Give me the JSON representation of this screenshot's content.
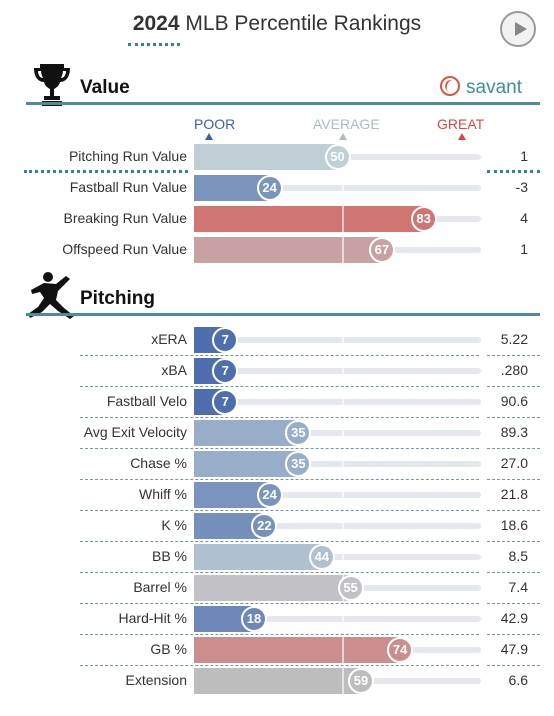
{
  "header": {
    "year": "2024",
    "title_rest": "MLB Percentile Rankings"
  },
  "play_icon": "play-icon",
  "brand": {
    "name": "savant",
    "icon": "baseball-icon",
    "color": "#3e8f93"
  },
  "scale": {
    "poor": "POOR",
    "average": "AVERAGE",
    "great": "GREAT"
  },
  "colors": {
    "low": "#3d5ea8",
    "mid": "#bfcfd5",
    "high": "#d8473f",
    "neutral": "#bdbdbd",
    "accent": "#4a8f96"
  },
  "sections": [
    {
      "title": "Value",
      "icon": "trophy-icon",
      "rows": [
        {
          "label": "Pitching Run Value",
          "percentile": 50,
          "value": "1"
        },
        {
          "label": "Fastball Run Value",
          "percentile": 24,
          "value": "-3"
        },
        {
          "label": "Breaking Run Value",
          "percentile": 83,
          "value": "4"
        },
        {
          "label": "Offspeed Run Value",
          "percentile": 67,
          "value": "1"
        }
      ]
    },
    {
      "title": "Pitching",
      "icon": "pitcher-icon",
      "rows": [
        {
          "label": "xERA",
          "percentile": 7,
          "value": "5.22"
        },
        {
          "label": "xBA",
          "percentile": 7,
          "value": ".280"
        },
        {
          "label": "Fastball Velo",
          "percentile": 7,
          "value": "90.6"
        },
        {
          "label": "Avg Exit Velocity",
          "percentile": 35,
          "value": "89.3"
        },
        {
          "label": "Chase %",
          "percentile": 35,
          "value": "27.0"
        },
        {
          "label": "Whiff %",
          "percentile": 24,
          "value": "21.8"
        },
        {
          "label": "K %",
          "percentile": 22,
          "value": "18.6"
        },
        {
          "label": "BB %",
          "percentile": 44,
          "value": "8.5"
        },
        {
          "label": "Barrel %",
          "percentile": 55,
          "value": "7.4"
        },
        {
          "label": "Hard-Hit %",
          "percentile": 18,
          "value": "42.9"
        },
        {
          "label": "GB %",
          "percentile": 74,
          "value": "47.9"
        },
        {
          "label": "Extension",
          "percentile": 59,
          "value": "6.6",
          "neutral": true
        }
      ]
    }
  ],
  "chart_data": {
    "type": "bar",
    "title": "2024 MLB Percentile Rankings",
    "xlim": [
      0,
      100
    ],
    "series": [
      {
        "name": "Value",
        "categories": [
          "Pitching Run Value",
          "Fastball Run Value",
          "Breaking Run Value",
          "Offspeed Run Value"
        ],
        "values": [
          50,
          24,
          83,
          67
        ],
        "stat_values": [
          "1",
          "-3",
          "4",
          "1"
        ]
      },
      {
        "name": "Pitching",
        "categories": [
          "xERA",
          "xBA",
          "Fastball Velo",
          "Avg Exit Velocity",
          "Chase %",
          "Whiff %",
          "K %",
          "BB %",
          "Barrel %",
          "Hard-Hit %",
          "GB %",
          "Extension"
        ],
        "values": [
          7,
          7,
          7,
          35,
          35,
          24,
          22,
          44,
          55,
          18,
          74,
          59
        ],
        "stat_values": [
          "5.22",
          ".280",
          "90.6",
          "89.3",
          "27.0",
          "21.8",
          "18.6",
          "8.5",
          "7.4",
          "42.9",
          "47.9",
          "6.6"
        ]
      }
    ]
  }
}
